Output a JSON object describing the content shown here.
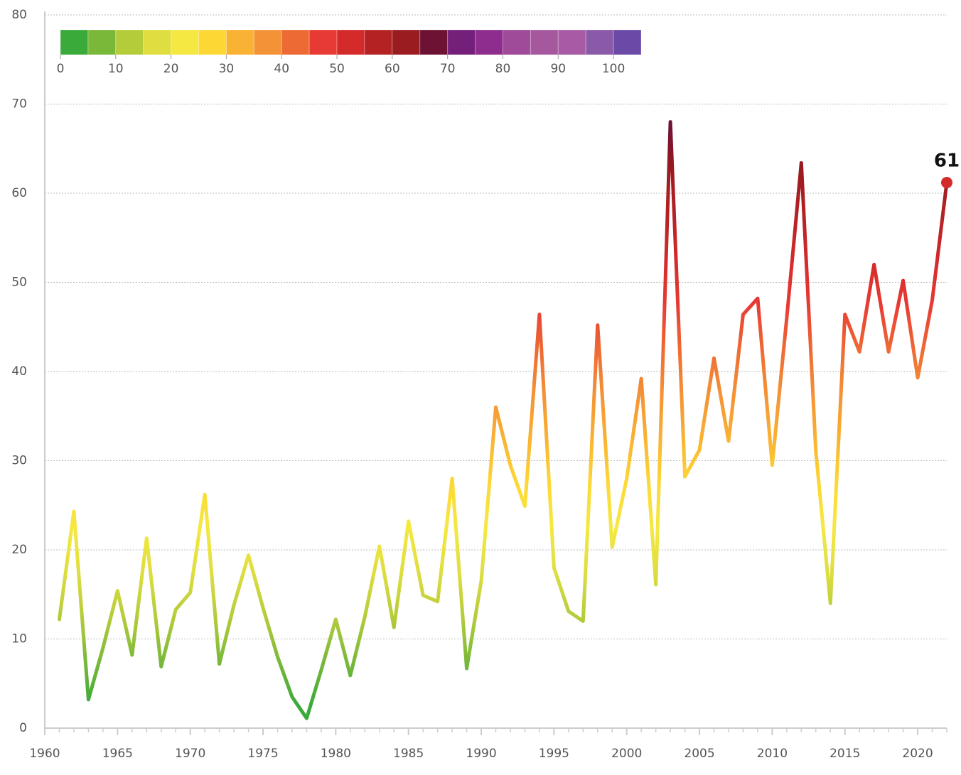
{
  "chart_data": {
    "type": "line",
    "x": [
      1961,
      1962,
      1963,
      1964,
      1965,
      1966,
      1967,
      1968,
      1969,
      1970,
      1971,
      1972,
      1973,
      1974,
      1975,
      1976,
      1977,
      1978,
      1979,
      1980,
      1981,
      1982,
      1983,
      1984,
      1985,
      1986,
      1987,
      1988,
      1989,
      1990,
      1991,
      1992,
      1993,
      1994,
      1995,
      1996,
      1997,
      1998,
      1999,
      2000,
      2001,
      2002,
      2003,
      2004,
      2005,
      2006,
      2007,
      2008,
      2009,
      2010,
      2011,
      2012,
      2013,
      2014,
      2015,
      2016,
      2017,
      2018,
      2019,
      2020,
      2021,
      2022
    ],
    "values": [
      12.2,
      24.3,
      3.2,
      9,
      15.4,
      8.2,
      21.3,
      6.9,
      13.3,
      15.2,
      26.2,
      7.2,
      13.8,
      19.4,
      13.5,
      8,
      3.5,
      1.1,
      6.5,
      12.2,
      5.9,
      12.5,
      20.4,
      11.3,
      23.2,
      14.9,
      14.2,
      28,
      6.7,
      16.5,
      36,
      29.5,
      24.9,
      46.4,
      18,
      13.1,
      12,
      45.2,
      20.3,
      28,
      39.2,
      16.1,
      68,
      28.2,
      31.2,
      41.5,
      32.2,
      46.4,
      48.2,
      29.5,
      46,
      63.4,
      31,
      14,
      46.4,
      42.2,
      52,
      42.2,
      50.2,
      39.3,
      48,
      61.2
    ],
    "value_labels": [
      null,
      null,
      null,
      null,
      null,
      null,
      null,
      null,
      null,
      null,
      null,
      null,
      null,
      null,
      null,
      null,
      null,
      null,
      null,
      null,
      null,
      null,
      null,
      null,
      null,
      null,
      null,
      null,
      null,
      null,
      null,
      null,
      null,
      null,
      null,
      null,
      null,
      null,
      null,
      null,
      null,
      null,
      null,
      null,
      null,
      null,
      null,
      null,
      null,
      null,
      null,
      null,
      null,
      null,
      null,
      null,
      null,
      null,
      null,
      null,
      null,
      "61"
    ],
    "xlim": [
      1960,
      2022
    ],
    "xticks": [
      1960,
      1965,
      1970,
      1975,
      1980,
      1985,
      1990,
      1995,
      2000,
      2005,
      2010,
      2015,
      2020
    ],
    "ylim": [
      0,
      80
    ],
    "yticks": [
      0,
      10,
      20,
      30,
      40,
      50,
      60,
      70,
      80
    ],
    "grid": true,
    "colorbar": {
      "lim": [
        0,
        105
      ],
      "ticks": [
        0,
        10,
        20,
        30,
        40,
        50,
        60,
        70,
        80,
        90,
        100
      ],
      "colors": [
        "#3aaa3a",
        "#7ab83a",
        "#b5cc3a",
        "#dede40",
        "#f5e842",
        "#fdd835",
        "#f9b233",
        "#f39236",
        "#ee6a34",
        "#e83a34",
        "#d42a2a",
        "#b42224",
        "#9a1b20",
        "#6e1234",
        "#74207a",
        "#8e2d8e",
        "#a04a9a",
        "#a6589f",
        "#a85aa5",
        "#8a5aa8",
        "#6a4aa6"
      ]
    }
  }
}
